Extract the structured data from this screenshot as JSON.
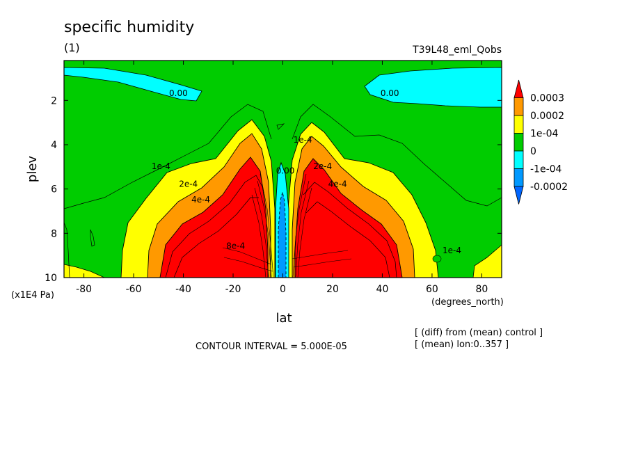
{
  "chart_data": {
    "type": "contour",
    "title": "specific humidity",
    "subtitle": "(1)",
    "dataset": "T39L48_eml_Qobs",
    "xlabel": "lat",
    "xunit": "(degrees_north)",
    "ylabel": "plev",
    "yunit": "(x1E4 Pa)",
    "xlim": [
      -88,
      88
    ],
    "ylim": [
      10,
      0.2
    ],
    "x_ticks": [
      -80,
      -60,
      -40,
      -20,
      0,
      20,
      40,
      60,
      80
    ],
    "x_tick_labels": [
      "-80",
      "-60",
      "-40",
      "-20",
      "0",
      "20",
      "40",
      "60",
      "80"
    ],
    "y_ticks": [
      2,
      4,
      6,
      8,
      10
    ],
    "y_tick_labels": [
      "2",
      "4",
      "6",
      "8",
      "10"
    ],
    "contour_interval_text": "CONTOUR INTERVAL = 5.000E-05",
    "notes": [
      "[ (diff) from (mean) control ]",
      "[ (mean) lon:0..357 ]"
    ],
    "contour_labels": [
      {
        "text": "0.00",
        "lat": -42,
        "plev": 1.8
      },
      {
        "text": "0.00",
        "lat": 43,
        "plev": 1.8
      },
      {
        "text": "1e-4",
        "lat": -49,
        "plev": 5.1
      },
      {
        "text": "2e-4",
        "lat": -38,
        "plev": 5.9
      },
      {
        "text": "4e-4",
        "lat": -33,
        "plev": 6.6
      },
      {
        "text": "1e-4",
        "lat": 8,
        "plev": 3.9
      },
      {
        "text": "0.00",
        "lat": 1,
        "plev": 5.3
      },
      {
        "text": "2e-4",
        "lat": 16,
        "plev": 5.1
      },
      {
        "text": "4e-4",
        "lat": 22,
        "plev": 5.9
      },
      {
        "text": "8e-4",
        "lat": -19,
        "plev": 8.7
      },
      {
        "text": "1e-4",
        "lat": 68,
        "plev": 8.9
      }
    ],
    "colorbar": {
      "labels": [
        "0.0003",
        "0.0002",
        "1e-04",
        "0",
        "-1e-04",
        "-0.0002"
      ],
      "colors": [
        "#ff0000",
        "#ff9900",
        "#ffff00",
        "#00cc00",
        "#00ffff",
        "#0099ff",
        "#0066ff"
      ]
    }
  }
}
